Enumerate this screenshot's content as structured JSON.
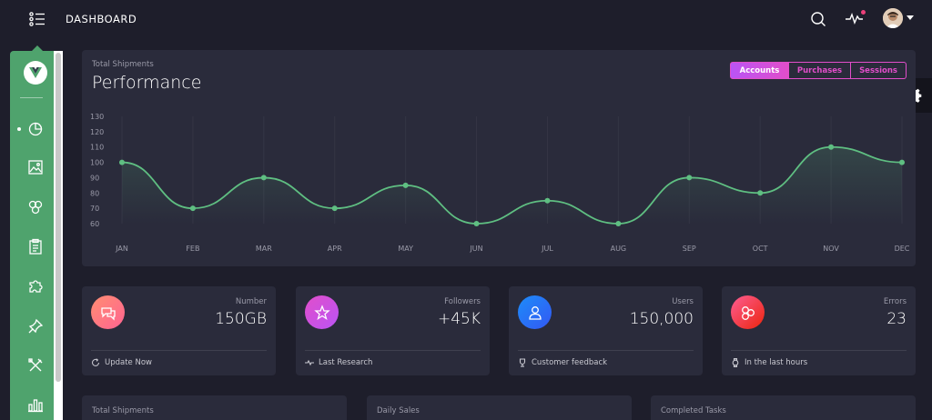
{
  "navbar": {
    "brand": "DASHBOARD",
    "toggle_icon": "list-menu-icon",
    "search_icon": "search-icon",
    "activity_icon": "activity-pulse-icon",
    "avatar_icon": "user-avatar",
    "notification_color": "#ec407a"
  },
  "sidebar": {
    "color": "#4fa36d",
    "logo_icon": "vue-logo-icon",
    "items": [
      {
        "icon": "pie-chart-icon",
        "active": true
      },
      {
        "icon": "image-icon",
        "active": false
      },
      {
        "icon": "atom-icon",
        "active": false
      },
      {
        "icon": "clipboard-icon",
        "active": false
      },
      {
        "icon": "puzzle-icon",
        "active": false
      },
      {
        "icon": "pin-icon",
        "active": false
      },
      {
        "icon": "tools-icon",
        "active": false
      },
      {
        "icon": "bar-chart-icon",
        "active": false
      }
    ]
  },
  "settings": {
    "icon": "gear-icon"
  },
  "performance": {
    "category": "Total Shipments",
    "title": "Performance",
    "tabs": [
      {
        "label": "Accounts",
        "active": true
      },
      {
        "label": "Purchases",
        "active": false
      },
      {
        "label": "Sessions",
        "active": false
      }
    ],
    "accent": "#e14eca"
  },
  "chart_data": {
    "type": "line",
    "categories": [
      "JAN",
      "FEB",
      "MAR",
      "APR",
      "MAY",
      "JUN",
      "JUL",
      "AUG",
      "SEP",
      "OCT",
      "NOV",
      "DEC"
    ],
    "values": [
      100,
      70,
      90,
      70,
      85,
      60,
      75,
      60,
      90,
      80,
      110,
      100
    ],
    "yticks": [
      60,
      70,
      80,
      90,
      100,
      110,
      120,
      130
    ],
    "ylim": [
      60,
      130
    ],
    "title": "",
    "xlabel": "",
    "ylabel": "",
    "color": "#5fbf82",
    "grid": "vertical"
  },
  "stats": [
    {
      "label": "Number",
      "value": "150GB",
      "footer": "Update Now",
      "icon": "chat-bubbles-icon",
      "footer_icon": "refresh-icon",
      "color": "#f5736a"
    },
    {
      "label": "Followers",
      "value": "+45K",
      "footer": "Last Research",
      "icon": "star-icon",
      "footer_icon": "pulse-icon",
      "color": "#c34fdc"
    },
    {
      "label": "Users",
      "value": "150,000",
      "footer": "Customer feedback",
      "icon": "user-icon",
      "footer_icon": "trophy-icon",
      "color": "#2f6fe8"
    },
    {
      "label": "Errors",
      "value": "23",
      "footer": "In the last hours",
      "icon": "molecule-icon",
      "footer_icon": "watch-icon",
      "color": "#e4484f"
    }
  ],
  "bottom_cards": [
    {
      "category": "Total Shipments"
    },
    {
      "category": "Daily Sales"
    },
    {
      "category": "Completed Tasks"
    }
  ]
}
